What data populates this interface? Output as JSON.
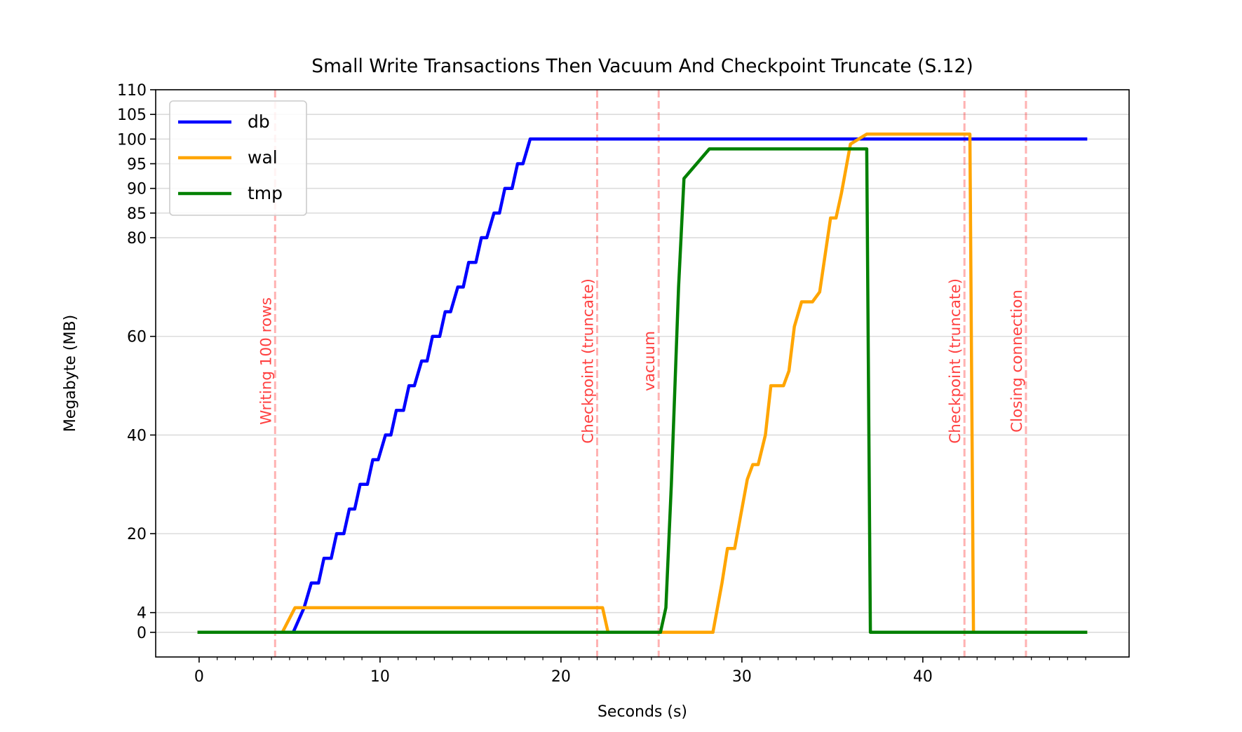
{
  "chart_data": {
    "type": "line",
    "title": "Small Write Transactions Then Vacuum And Checkpoint Truncate (S.12)",
    "xlabel": "Seconds (s)",
    "ylabel": "Megabyte (MB)",
    "xlim": [
      -2.4,
      51.4
    ],
    "ylim": [
      -5,
      110
    ],
    "x_ticks": [
      0,
      10,
      20,
      30,
      40
    ],
    "x_tick_labels": [
      "0",
      "10",
      "20",
      "30",
      "40"
    ],
    "x_minor_ticks": [
      1,
      2,
      3,
      4,
      5,
      6,
      7,
      8,
      9,
      11,
      12,
      13,
      14,
      15,
      16,
      17,
      18,
      19,
      21,
      22,
      23,
      24,
      25,
      26,
      27,
      28,
      29,
      31,
      32,
      33,
      34,
      35,
      36,
      37,
      38,
      39,
      41,
      42,
      43,
      44,
      45,
      46,
      47,
      48,
      49
    ],
    "y_ticks": [
      0,
      4,
      20,
      40,
      60,
      80,
      85,
      90,
      95,
      100,
      105,
      110
    ],
    "y_tick_labels": [
      "0",
      "4",
      "20",
      "40",
      "60",
      "80",
      "85",
      "90",
      "95",
      "100",
      "105",
      "110"
    ],
    "grid": "horizontal",
    "legend_position": "top-left",
    "colors": {
      "db": "#0000ff",
      "wal": "#ffa500",
      "tmp": "#008000",
      "event": "#ff0000"
    },
    "series": [
      {
        "name": "db",
        "color": "#0000ff",
        "x": [
          0,
          5.2,
          5.8,
          6.2,
          6.6,
          6.9,
          7.3,
          7.6,
          8.0,
          8.3,
          8.6,
          8.9,
          9.3,
          9.6,
          9.9,
          10.3,
          10.6,
          10.9,
          11.3,
          11.6,
          11.9,
          12.3,
          12.6,
          12.9,
          13.3,
          13.6,
          13.9,
          14.3,
          14.6,
          14.9,
          15.3,
          15.6,
          15.9,
          16.3,
          16.6,
          16.9,
          17.3,
          17.6,
          17.9,
          18.3,
          18.6,
          19.0,
          49
        ],
        "y": [
          0,
          0,
          5,
          10,
          10,
          15,
          15,
          20,
          20,
          25,
          25,
          30,
          30,
          35,
          35,
          40,
          40,
          45,
          45,
          50,
          50,
          55,
          55,
          60,
          60,
          65,
          65,
          70,
          70,
          75,
          75,
          80,
          80,
          85,
          85,
          90,
          90,
          95,
          95,
          100,
          100,
          100,
          100
        ]
      },
      {
        "name": "wal",
        "color": "#ffa500",
        "x": [
          0,
          4.6,
          5.3,
          22.3,
          22.6,
          25.5,
          28.4,
          28.9,
          29.2,
          29.6,
          29.9,
          30.3,
          30.6,
          30.9,
          31.3,
          31.6,
          31.9,
          32.3,
          32.6,
          32.9,
          33.3,
          33.6,
          33.9,
          34.3,
          34.9,
          35.2,
          35.5,
          36.0,
          36.9,
          42.6,
          42.8,
          49
        ],
        "y": [
          0,
          0,
          5,
          5,
          0,
          0,
          0,
          10,
          17,
          17,
          23,
          31,
          34,
          34,
          40,
          50,
          50,
          50,
          53,
          62,
          67,
          67,
          67,
          69,
          84,
          84,
          89,
          99,
          101,
          101,
          0,
          0
        ]
      },
      {
        "name": "tmp",
        "color": "#008000",
        "x": [
          0,
          25.3,
          25.5,
          25.8,
          26.1,
          26.5,
          26.8,
          28.2,
          29.0,
          30.0,
          36.9,
          37.1,
          49
        ],
        "y": [
          0,
          0,
          0,
          5,
          30,
          70,
          92,
          98,
          98,
          98,
          98,
          0,
          0
        ]
      }
    ],
    "event_markers": [
      {
        "x": 4.2,
        "label": "Writing 100 rows"
      },
      {
        "x": 22.0,
        "label": "Checkpoint (truncate)"
      },
      {
        "x": 25.4,
        "label": "vacuum"
      },
      {
        "x": 42.3,
        "label": "Checkpoint (truncate)"
      },
      {
        "x": 45.7,
        "label": "Closing connection"
      }
    ]
  }
}
